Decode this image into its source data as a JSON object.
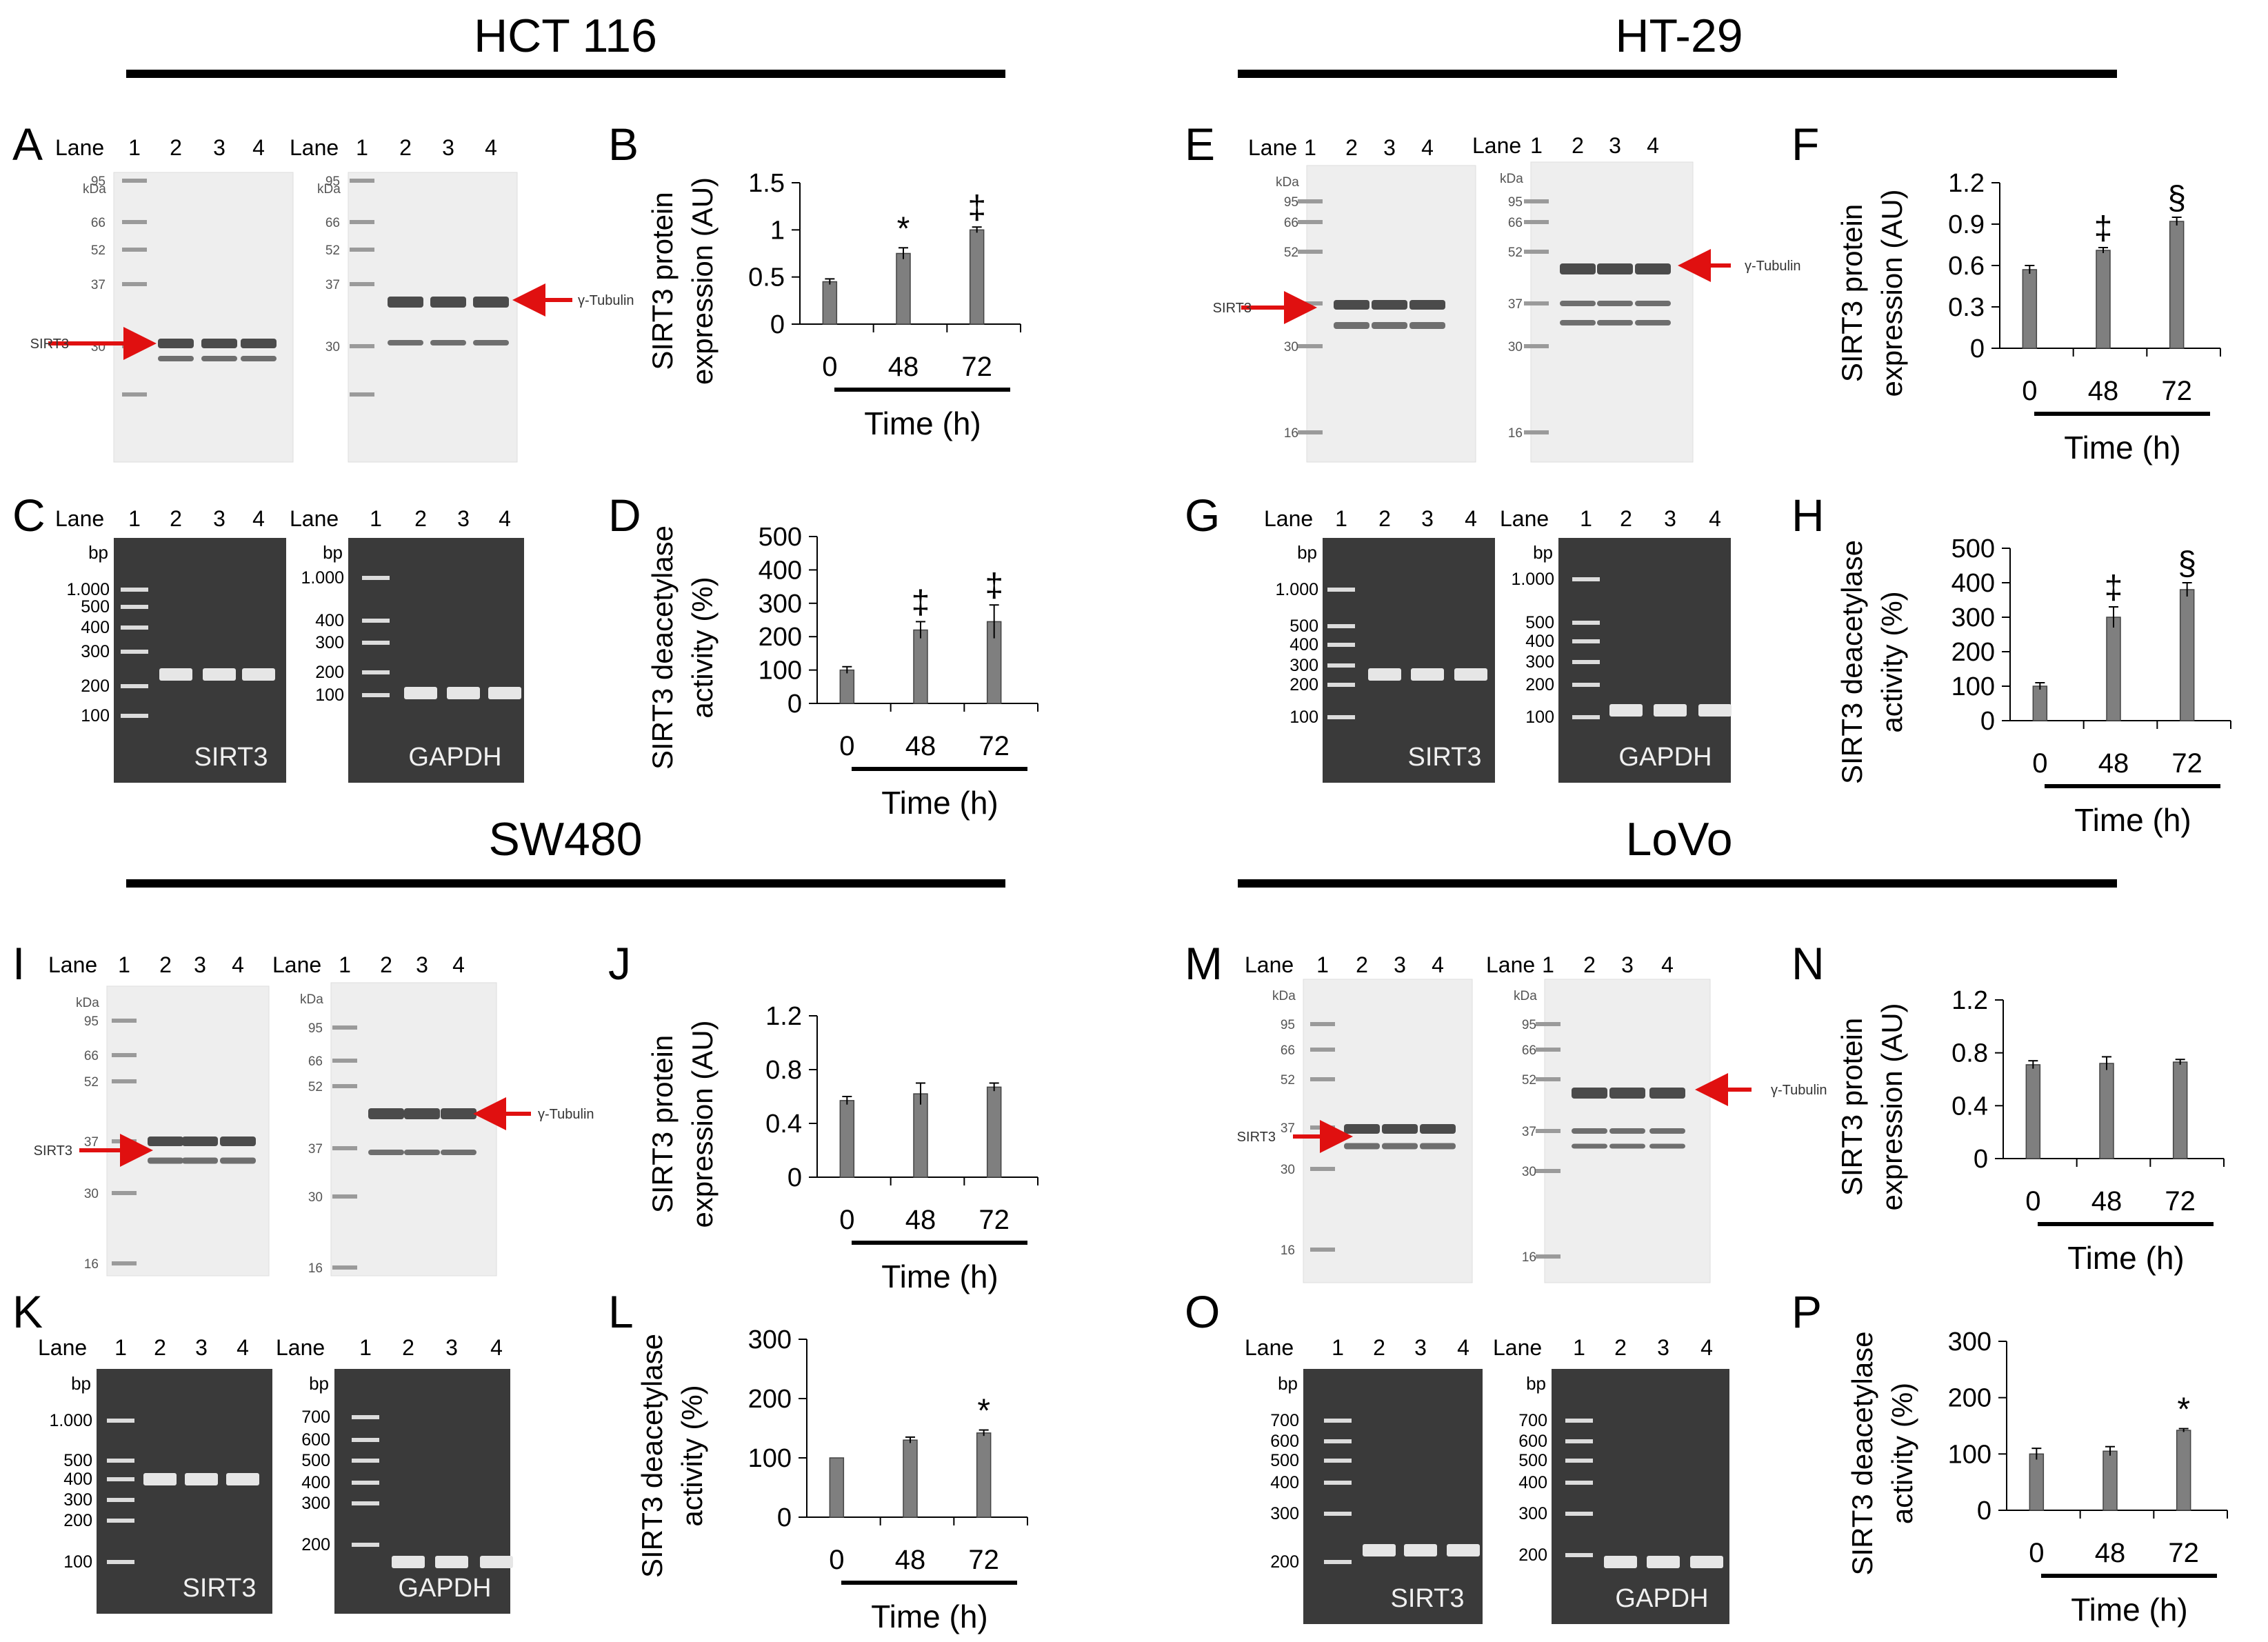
{
  "sections": [
    {
      "label": "HCT 116"
    },
    {
      "label": "HT-29"
    },
    {
      "label": "SW480"
    },
    {
      "label": "LoVo"
    }
  ],
  "panel_letters": [
    "A",
    "B",
    "C",
    "D",
    "E",
    "F",
    "G",
    "H",
    "I",
    "J",
    "K",
    "L",
    "M",
    "N",
    "O",
    "P"
  ],
  "lane_labels": {
    "lane": "Lane",
    "lanes": [
      "1",
      "2",
      "3",
      "4"
    ]
  },
  "units": {
    "kda": "kDa",
    "bp": "bp"
  },
  "band_labels": {
    "sirt3": "SIRT3",
    "tubulin": "γ-Tubulin",
    "sirt3_gel": "SIRT3",
    "gapdh_gel": "GAPDH"
  },
  "western_markers": {
    "hct_sirt3": [
      "95",
      "66",
      "52",
      "37",
      "30"
    ],
    "hct_tub": [
      "95",
      "66",
      "52",
      "37",
      "30"
    ],
    "ht_sirt3": [
      "95",
      "66",
      "52",
      "37",
      "30",
      "16"
    ],
    "ht_tub": [
      "95",
      "66",
      "52",
      "37",
      "30",
      "16"
    ],
    "sw_sirt3": [
      "95",
      "66",
      "52",
      "37",
      "30",
      "16"
    ],
    "sw_tub": [
      "95",
      "66",
      "52",
      "37",
      "30",
      "16"
    ],
    "lovo_sirt3": [
      "95",
      "66",
      "52",
      "37",
      "30",
      "16"
    ],
    "lovo_tub": [
      "95",
      "66",
      "52",
      "37",
      "30",
      "16"
    ]
  },
  "pcr_markers": {
    "hct_sirt3": [
      "1.000",
      "500",
      "400",
      "300",
      "200",
      "100"
    ],
    "hct_gapdh": [
      "1.000",
      "400",
      "300",
      "200",
      "100"
    ],
    "ht_sirt3": [
      "1.000",
      "500",
      "400",
      "300",
      "200",
      "100"
    ],
    "ht_gapdh": [
      "1.000",
      "500",
      "400",
      "300",
      "200",
      "100"
    ],
    "sw_sirt3": [
      "1.000",
      "500",
      "400",
      "300",
      "200",
      "100"
    ],
    "sw_gapdh": [
      "700",
      "600",
      "500",
      "400",
      "300",
      "200"
    ],
    "lovo_sirt3": [
      "700",
      "600",
      "500",
      "400",
      "300",
      "200"
    ],
    "lovo_gapdh": [
      "700",
      "600",
      "500",
      "400",
      "300",
      "200"
    ]
  },
  "chart_data": [
    {
      "panel": "B",
      "type": "bar",
      "categories": [
        "0",
        "48",
        "72"
      ],
      "values": [
        0.45,
        0.75,
        1.0
      ],
      "errors": [
        0.03,
        0.06,
        0.03
      ],
      "significance": [
        "",
        "*",
        "‡"
      ],
      "ylabel": "SIRT3 protein expression (AU)",
      "xlabel": "Time (h)",
      "ylim": [
        0,
        1.5
      ],
      "yticks": [
        "0",
        "0.5",
        "1",
        "1.5"
      ]
    },
    {
      "panel": "D",
      "type": "bar",
      "categories": [
        "0",
        "48",
        "72"
      ],
      "values": [
        100,
        220,
        245
      ],
      "errors": [
        10,
        25,
        50
      ],
      "significance": [
        "",
        "‡",
        "‡"
      ],
      "ylabel": "SIRT3 deacetylase activity (%)",
      "xlabel": "Time (h)",
      "ylim": [
        0,
        500
      ],
      "yticks": [
        "0",
        "100",
        "200",
        "300",
        "400",
        "500"
      ]
    },
    {
      "panel": "F",
      "type": "bar",
      "categories": [
        "0",
        "48",
        "72"
      ],
      "values": [
        0.57,
        0.71,
        0.92
      ],
      "errors": [
        0.03,
        0.02,
        0.03
      ],
      "significance": [
        "",
        "‡",
        "§"
      ],
      "ylabel": "SIRT3 protein expression (AU)",
      "xlabel": "Time (h)",
      "ylim": [
        0,
        1.2
      ],
      "yticks": [
        "0",
        "0.3",
        "0.6",
        "0.9",
        "1.2"
      ]
    },
    {
      "panel": "H",
      "type": "bar",
      "categories": [
        "0",
        "48",
        "72"
      ],
      "values": [
        100,
        300,
        380
      ],
      "errors": [
        10,
        30,
        20
      ],
      "significance": [
        "",
        "‡",
        "§"
      ],
      "ylabel": "SIRT3 deacetylase activity (%)",
      "xlabel": "Time (h)",
      "ylim": [
        0,
        500
      ],
      "yticks": [
        "0",
        "100",
        "200",
        "300",
        "400",
        "500"
      ]
    },
    {
      "panel": "J",
      "type": "bar",
      "categories": [
        "0",
        "48",
        "72"
      ],
      "values": [
        0.57,
        0.62,
        0.67
      ],
      "errors": [
        0.03,
        0.08,
        0.03
      ],
      "significance": [
        "",
        "",
        ""
      ],
      "ylabel": "SIRT3 protein expression (AU)",
      "xlabel": "Time (h)",
      "ylim": [
        0,
        1.2
      ],
      "yticks": [
        "0",
        "0.4",
        "0.8",
        "1.2"
      ]
    },
    {
      "panel": "L",
      "type": "bar",
      "categories": [
        "0",
        "48",
        "72"
      ],
      "values": [
        100,
        130,
        142
      ],
      "errors": [
        0,
        5,
        5
      ],
      "significance": [
        "",
        "",
        "*"
      ],
      "ylabel": "SIRT3 deacetylase activity (%)",
      "xlabel": "Time (h)",
      "ylim": [
        0,
        300
      ],
      "yticks": [
        "0",
        "100",
        "200",
        "300"
      ]
    },
    {
      "panel": "N",
      "type": "bar",
      "categories": [
        "0",
        "48",
        "72"
      ],
      "values": [
        0.71,
        0.72,
        0.73
      ],
      "errors": [
        0.03,
        0.05,
        0.02
      ],
      "significance": [
        "",
        "",
        ""
      ],
      "ylabel": "SIRT3 protein expression (AU)",
      "xlabel": "Time (h)",
      "ylim": [
        0,
        1.2
      ],
      "yticks": [
        "0",
        "0.4",
        "0.8",
        "1.2"
      ]
    },
    {
      "panel": "P",
      "type": "bar",
      "categories": [
        "0",
        "48",
        "72"
      ],
      "values": [
        100,
        105,
        142
      ],
      "errors": [
        10,
        8,
        3
      ],
      "significance": [
        "",
        "",
        "*"
      ],
      "ylabel": "SIRT3 deacetylase activity (%)",
      "xlabel": "Time (h)",
      "ylim": [
        0,
        300
      ],
      "yticks": [
        "0",
        "100",
        "200",
        "300"
      ]
    }
  ]
}
